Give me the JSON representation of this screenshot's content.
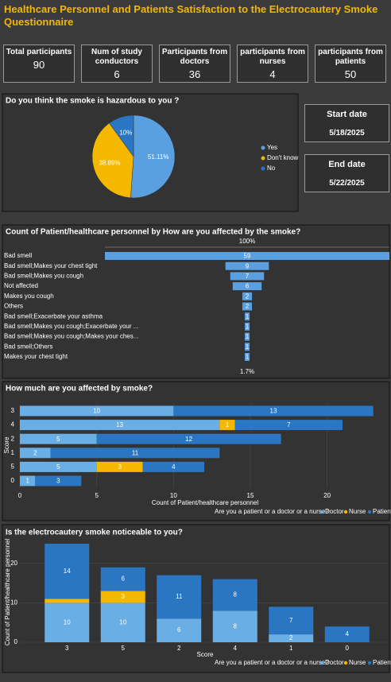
{
  "title": "Healthcare Personnel and Patients Satisfaction to the Electrocautery Smoke Questionnaire",
  "cards": [
    {
      "label": "Total participants",
      "value": 90
    },
    {
      "label": "Num of study conductors",
      "value": 6
    },
    {
      "label": "Participants from doctors",
      "value": 36
    },
    {
      "label": "participants from nurses",
      "value": 4
    },
    {
      "label": "participants from patients",
      "value": 50
    }
  ],
  "dates": [
    {
      "label": "Start date",
      "value": "5/18/2025"
    },
    {
      "label": "End date",
      "value": "5/22/2025"
    }
  ],
  "chart_data": [
    {
      "type": "pie",
      "title": "Do you think the smoke is hazardous to you ?",
      "categories": [
        "Yes",
        "Don't know",
        "No"
      ],
      "values": [
        51.11,
        38.89,
        10
      ],
      "value_labels": [
        "51.11%",
        "38.89%",
        "10%"
      ],
      "colors": [
        "#5aa0e0",
        "#f5b800",
        "#2a76c2"
      ]
    },
    {
      "type": "funnel",
      "title": "Count of Patient/healthcare personnel by How are you affected by the smoke?",
      "categories": [
        "Bad smell",
        "Bad smell;Makes your chest tight",
        "Bad smell;Makes you cough",
        "Not affected",
        "Makes you cough",
        "Others",
        "Bad smell;Exacerbate your asthma",
        "Bad smell;Makes you cough;Exacerbate your ...",
        "Bad smell;Makes you cough;Makes your ches...",
        "Bad smell;Others",
        "Makes your chest tight"
      ],
      "values": [
        59,
        9,
        7,
        6,
        2,
        2,
        1,
        1,
        1,
        1,
        1
      ],
      "color": "#5aa0e0",
      "top_label": "100%",
      "bottom_label": "1.7%"
    },
    {
      "type": "hbar",
      "title": "How much are you affected by smoke?",
      "categories": [
        "3",
        "4",
        "2",
        "1",
        "5",
        "0"
      ],
      "series": [
        {
          "name": "Doctor",
          "color": "#6aaee6",
          "values": [
            10,
            13,
            5,
            2,
            5,
            1
          ]
        },
        {
          "name": "Nurse",
          "color": "#f5b800",
          "values": [
            null,
            1,
            null,
            null,
            3,
            null
          ]
        },
        {
          "name": "Patient",
          "color": "#2a76c2",
          "values": [
            13,
            7,
            12,
            11,
            4,
            3
          ]
        }
      ],
      "xlim": [
        0,
        24
      ],
      "xticks": [
        0,
        5,
        10,
        15,
        20
      ],
      "x_label": "Count of Patient/healthcare personnel",
      "y_label": "Score",
      "legend_title": "Are you a patient or a doctor or a nurse?"
    },
    {
      "type": "column",
      "title": "Is the electrocautery smoke noticeable to you?",
      "categories": [
        "3",
        "5",
        "2",
        "4",
        "1",
        "0"
      ],
      "series": [
        {
          "name": "Doctor",
          "color": "#6aaee6",
          "values": [
            10,
            10,
            6,
            8,
            2,
            null
          ]
        },
        {
          "name": "Nurse",
          "color": "#f5b800",
          "values": [
            1,
            3,
            null,
            null,
            null,
            null
          ]
        },
        {
          "name": "Patient",
          "color": "#2a76c2",
          "values": [
            14,
            6,
            11,
            8,
            7,
            4
          ]
        }
      ],
      "ylim": [
        0,
        25
      ],
      "yticks": [
        0,
        10,
        20
      ],
      "x_label": "Score",
      "y_label": "Count of Patient/healthcare personnel",
      "legend_title": "Are you a patient or a doctor or a nurse?"
    }
  ]
}
